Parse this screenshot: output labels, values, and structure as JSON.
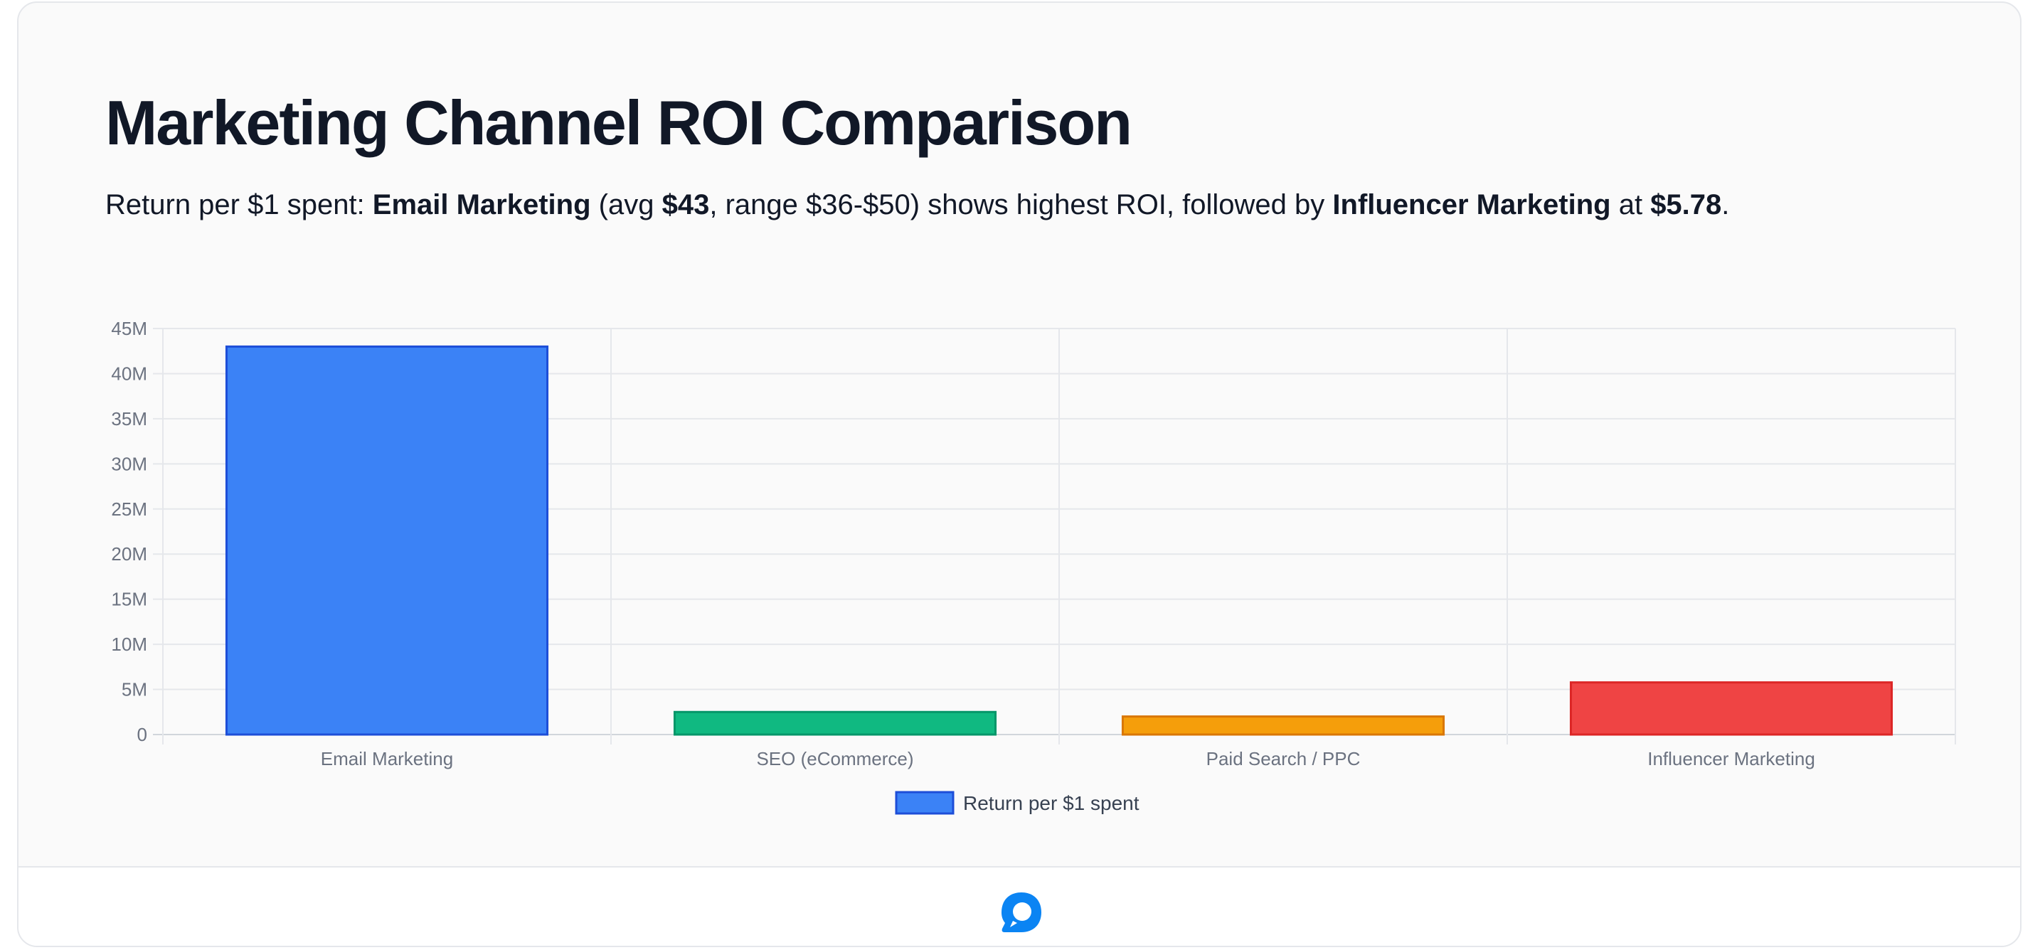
{
  "header": {
    "title": "Marketing Channel ROI Comparison",
    "subtitle": {
      "s1": "Return per $1 spent: ",
      "b1": "Email Marketing",
      "s2": " (avg ",
      "b2": "$43",
      "s3": ", range $36-$50) shows highest ROI, followed by ",
      "b3": "Influencer Marketing",
      "s4": " at ",
      "b4": "$5.78",
      "s5": "."
    }
  },
  "chart_data": {
    "type": "bar",
    "categories": [
      "Email Marketing",
      "SEO (eCommerce)",
      "Paid Search / PPC",
      "Influencer Marketing"
    ],
    "series": [
      {
        "name": "Return per $1 spent",
        "values": [
          43000000,
          2500000,
          2000000,
          5780000
        ]
      }
    ],
    "y_ticks": [
      "0",
      "5M",
      "10M",
      "15M",
      "20M",
      "25M",
      "30M",
      "35M",
      "40M",
      "45M"
    ],
    "ylim": [
      0,
      45000000
    ],
    "grid": true,
    "legend": "bottom",
    "colors": {
      "fill": [
        "#3b82f6",
        "#10b981",
        "#f59e0b",
        "#ef4444"
      ],
      "border": [
        "#1d4ed8",
        "#059669",
        "#d97706",
        "#dc2626"
      ],
      "grid": "#e5e7eb",
      "axis_text": "#6b7280"
    }
  },
  "footer": {
    "icon": "chat-bubble-logo-icon",
    "brand_color": "#0b84f3"
  }
}
